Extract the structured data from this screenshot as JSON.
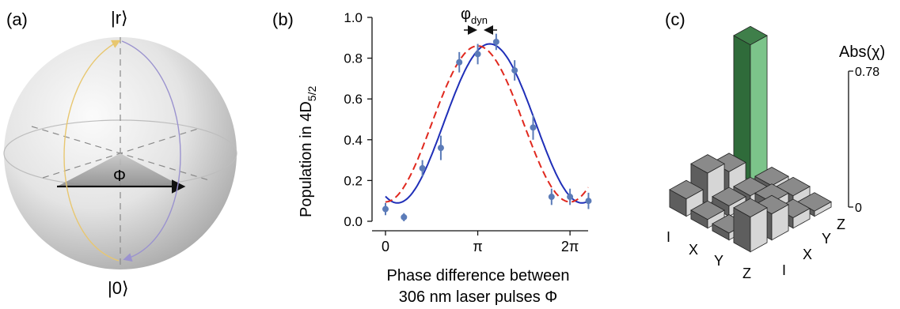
{
  "panels": {
    "a": {
      "label": "(a)",
      "state_top": "|r⟩",
      "state_bottom": "|0⟩",
      "angle_label": "Φ"
    },
    "b": {
      "label": "(b)",
      "annotation": "φ",
      "annotation_sub": "dyn",
      "ylabel_main": "Population in 4D",
      "ylabel_sub": "5/2",
      "xlabel_line1": "Phase difference between",
      "xlabel_line2": "306 nm laser pulses Φ"
    },
    "c": {
      "label": "(c)",
      "zlabel": "Abs(χ)",
      "ztick_top": "0.78",
      "ztick_bottom": "0",
      "axis1_labels": [
        "I",
        "X",
        "Y",
        "Z"
      ],
      "axis2_labels": [
        "I",
        "X",
        "Y",
        "Z"
      ]
    }
  },
  "chart_data": [
    {
      "type": "scatter",
      "panel": "b",
      "xlabel": "Phase difference between 306 nm laser pulses Φ",
      "ylabel": "Population in 4D5/2",
      "xlim": [
        0,
        6.9
      ],
      "ylim": [
        0,
        1.0
      ],
      "x_ticks": [
        {
          "value": 0,
          "label": "0"
        },
        {
          "value": 3.14159,
          "label": "π"
        },
        {
          "value": 6.28319,
          "label": "2π"
        }
      ],
      "y_ticks": [
        "0.0",
        "0.2",
        "0.4",
        "0.6",
        "0.8",
        "1.0"
      ],
      "series": [
        {
          "kind": "points",
          "color": "#5b7bb8",
          "x": [
            0.0,
            0.628,
            1.257,
            1.885,
            2.513,
            3.142,
            3.77,
            4.398,
            5.027,
            5.655,
            6.283,
            6.912
          ],
          "y": [
            0.06,
            0.02,
            0.26,
            0.36,
            0.78,
            0.82,
            0.88,
            0.74,
            0.46,
            0.12,
            0.12,
            0.1
          ],
          "err": [
            0.03,
            0.02,
            0.04,
            0.06,
            0.05,
            0.05,
            0.04,
            0.05,
            0.06,
            0.04,
            0.04,
            0.04
          ]
        },
        {
          "kind": "fit",
          "style": "solid",
          "color": "#1f2fb8",
          "offset": 0.09,
          "amplitude": 0.78,
          "phase": 3.55
        },
        {
          "kind": "fit",
          "style": "dashed",
          "color": "#e0281e",
          "offset": 0.095,
          "amplitude": 0.765,
          "phase": 3.14
        }
      ]
    },
    {
      "type": "bar",
      "panel": "c",
      "description_axes": [
        "I",
        "X",
        "Y",
        "Z"
      ],
      "zlim": [
        0,
        0.78
      ],
      "highlight_color": "#3f7f4a",
      "bar_color": "#8a8a8a",
      "matrix": [
        {
          "i": "I",
          "j": "I",
          "value": 0.1
        },
        {
          "i": "X",
          "j": "I",
          "value": 0.05
        },
        {
          "i": "Y",
          "j": "I",
          "value": 0.04
        },
        {
          "i": "Z",
          "j": "I",
          "value": 0.2
        },
        {
          "i": "I",
          "j": "X",
          "value": 0.18
        },
        {
          "i": "X",
          "j": "X",
          "value": 0.06
        },
        {
          "i": "Y",
          "j": "X",
          "value": 0.05
        },
        {
          "i": "Z",
          "j": "X",
          "value": 0.15
        },
        {
          "i": "I",
          "j": "Y",
          "value": 0.12
        },
        {
          "i": "X",
          "j": "Y",
          "value": 0.05
        },
        {
          "i": "Y",
          "j": "Y",
          "value": 0.08
        },
        {
          "i": "Z",
          "j": "Y",
          "value": 0.06
        },
        {
          "i": "I",
          "j": "Z",
          "value": 0.78
        },
        {
          "i": "X",
          "j": "Z",
          "value": 0.04
        },
        {
          "i": "Y",
          "j": "Z",
          "value": 0.05
        },
        {
          "i": "Z",
          "j": "Z",
          "value": 0.03
        }
      ]
    }
  ]
}
